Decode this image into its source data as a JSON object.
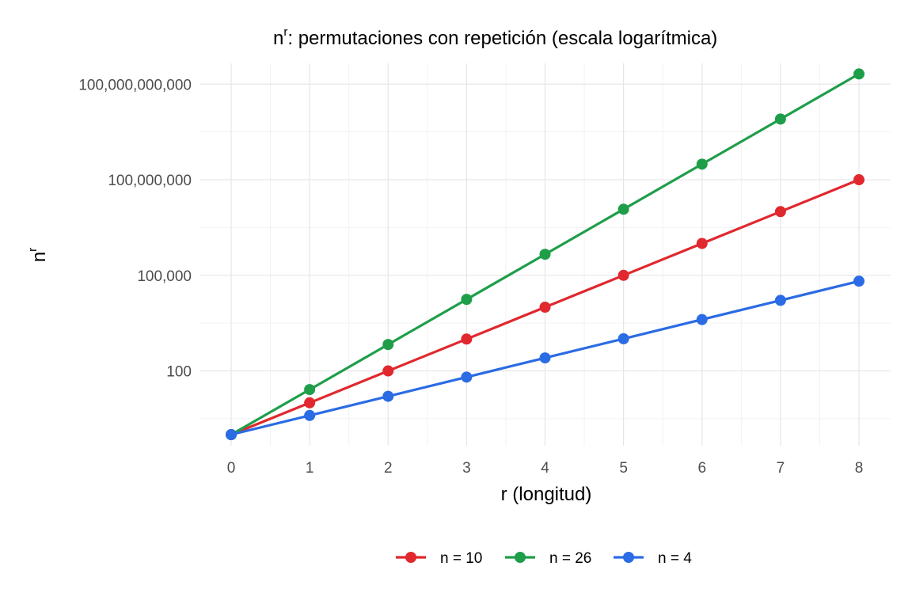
{
  "chart_data": {
    "type": "line",
    "title": {
      "base": "n",
      "sup": "r",
      "rest": ": permutaciones con repetición (escala logarítmica)"
    },
    "xlabel": "r (longitud)",
    "ylabel": {
      "base": "n",
      "sup": "r"
    },
    "x": [
      0,
      1,
      2,
      3,
      4,
      5,
      6,
      7,
      8
    ],
    "xlim": [
      0,
      8
    ],
    "y_scale": "log10",
    "ylim": [
      0.45,
      450000000000
    ],
    "y_ticks": [
      100,
      100000,
      100000000,
      100000000000
    ],
    "y_tick_labels": [
      "100",
      "100,000",
      "100,000,000",
      "100,000,000,000"
    ],
    "grid": true,
    "legend_position": "bottom",
    "series": [
      {
        "name": "n = 10",
        "color": "#e0282e",
        "values": [
          1,
          10,
          100,
          1000,
          10000,
          100000,
          1000000,
          10000000,
          100000000
        ]
      },
      {
        "name": "n = 26",
        "color": "#1f9e4a",
        "values": [
          1,
          26,
          676,
          17576,
          456976,
          11881376,
          308915776,
          8031810176,
          208827064576
        ]
      },
      {
        "name": "n = 4",
        "color": "#2b6be4",
        "values": [
          1,
          4,
          16,
          64,
          256,
          1024,
          4096,
          16384,
          65536
        ]
      }
    ]
  }
}
